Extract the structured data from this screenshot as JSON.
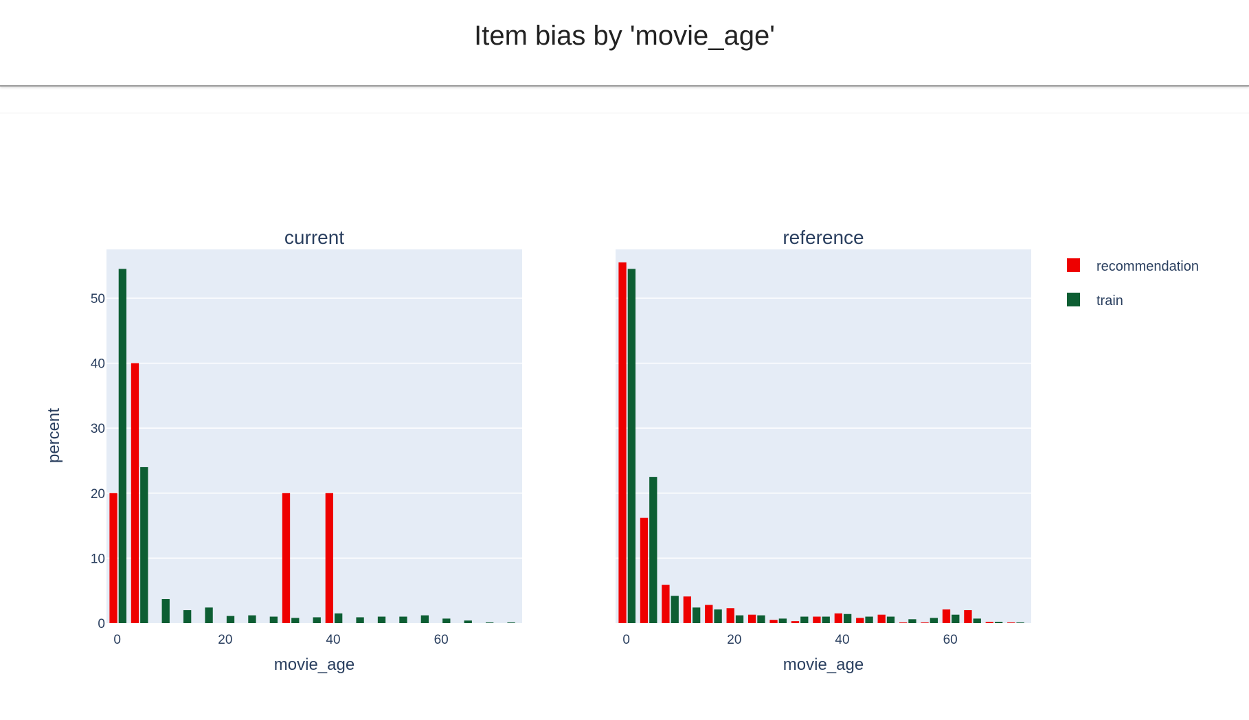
{
  "page": {
    "title": "Item bias by 'movie_age'"
  },
  "colors": {
    "recommendation": "#ee0000",
    "train": "#0d5e33",
    "plot_bg": "#e5ecf6",
    "grid": "#ffffff"
  },
  "chart_data": {
    "type": "bar",
    "ylabel": "percent",
    "ylim": [
      0,
      57.5
    ],
    "yticks": [
      0,
      10,
      20,
      30,
      40,
      50
    ],
    "xlim": [
      -2,
      75
    ],
    "xticks": [
      0,
      20,
      40,
      60
    ],
    "legend": {
      "placement": "right",
      "entries": [
        {
          "name": "recommendation",
          "color": "#ee0000"
        },
        {
          "name": "train",
          "color": "#0d5e33"
        }
      ]
    },
    "panels": [
      {
        "subtitle": "current",
        "xlabel": "movie_age",
        "x": [
          0,
          4,
          8,
          12,
          16,
          20,
          24,
          28,
          32,
          36,
          40,
          44,
          48,
          52,
          56,
          60,
          64,
          68,
          72
        ],
        "series": [
          {
            "name": "recommendation",
            "values": [
              20,
              40,
              0,
              0,
              0,
              0,
              0,
              0,
              20,
              0,
              20,
              0,
              0,
              0,
              0,
              0,
              0,
              0,
              0
            ]
          },
          {
            "name": "train",
            "values": [
              54.5,
              24,
              3.7,
              2,
              2.4,
              1.1,
              1.2,
              1,
              0.8,
              0.9,
              1.5,
              0.9,
              1,
              1,
              1.2,
              0.7,
              0.4,
              0.1,
              0.1
            ]
          }
        ]
      },
      {
        "subtitle": "reference",
        "xlabel": "movie_age",
        "x": [
          0,
          4,
          8,
          12,
          16,
          20,
          24,
          28,
          32,
          36,
          40,
          44,
          48,
          52,
          56,
          60,
          64,
          68,
          72
        ],
        "series": [
          {
            "name": "recommendation",
            "values": [
              55.5,
              16.2,
              5.9,
              4.1,
              2.8,
              2.3,
              1.3,
              0.5,
              0.3,
              1,
              1.5,
              0.8,
              1.3,
              0.1,
              0.1,
              2.1,
              2,
              0.2,
              0.1
            ]
          },
          {
            "name": "train",
            "values": [
              54.5,
              22.5,
              4.2,
              2.4,
              2.1,
              1.2,
              1.2,
              0.7,
              1,
              1,
              1.4,
              1,
              1,
              0.6,
              0.8,
              1.3,
              0.7,
              0.2,
              0.1
            ]
          }
        ]
      }
    ]
  }
}
